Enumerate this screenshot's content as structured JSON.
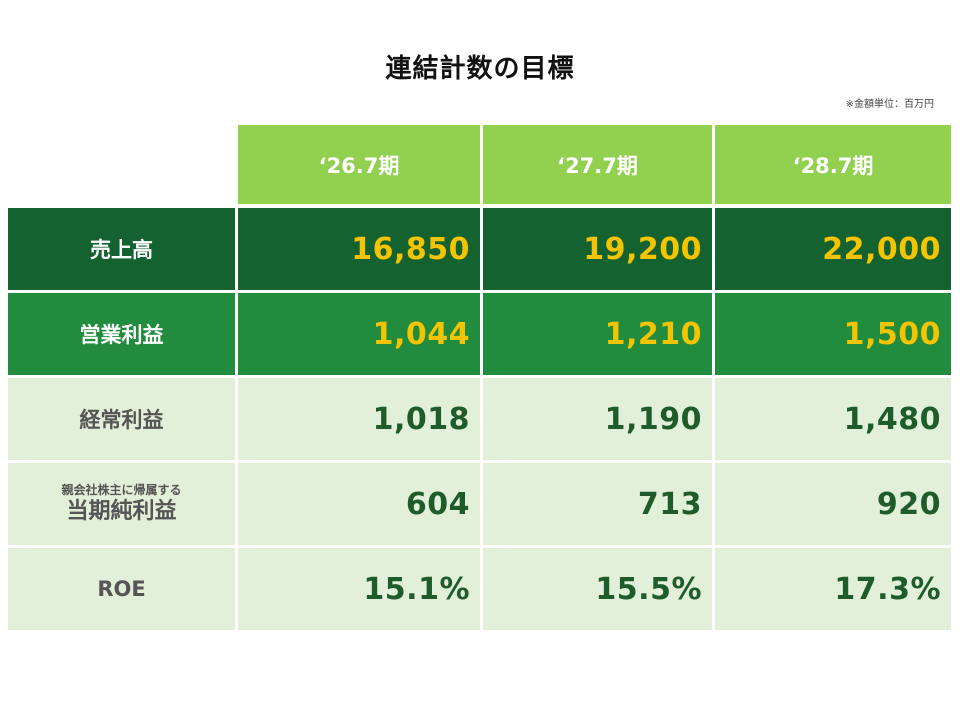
{
  "title": "連結計数の目標",
  "unit_note": "※金額単位：百万円",
  "columns": [
    "‘26.7期",
    "‘27.7期",
    "‘28.7期"
  ],
  "rows": [
    {
      "label": "売上高",
      "values": [
        "16,850",
        "19,200",
        "22,000"
      ]
    },
    {
      "label": "営業利益",
      "values": [
        "1,044",
        "1,210",
        "1,500"
      ]
    },
    {
      "label": "経常利益",
      "values": [
        "1,018",
        "1,190",
        "1,480"
      ]
    },
    {
      "label_small": "親会社株主に帰属する",
      "label": "当期純利益",
      "values": [
        "604",
        "713",
        "920"
      ]
    },
    {
      "label": "ROE",
      "values": [
        "15.1%",
        "15.5%",
        "17.3%"
      ]
    }
  ],
  "colors": {
    "header": "#92d050",
    "row_dark": "#146230",
    "row_mid": "#218c3d",
    "row_light": "#e2efd9",
    "highlight_value": "#f5c400",
    "value_text": "#1e5c2c"
  }
}
